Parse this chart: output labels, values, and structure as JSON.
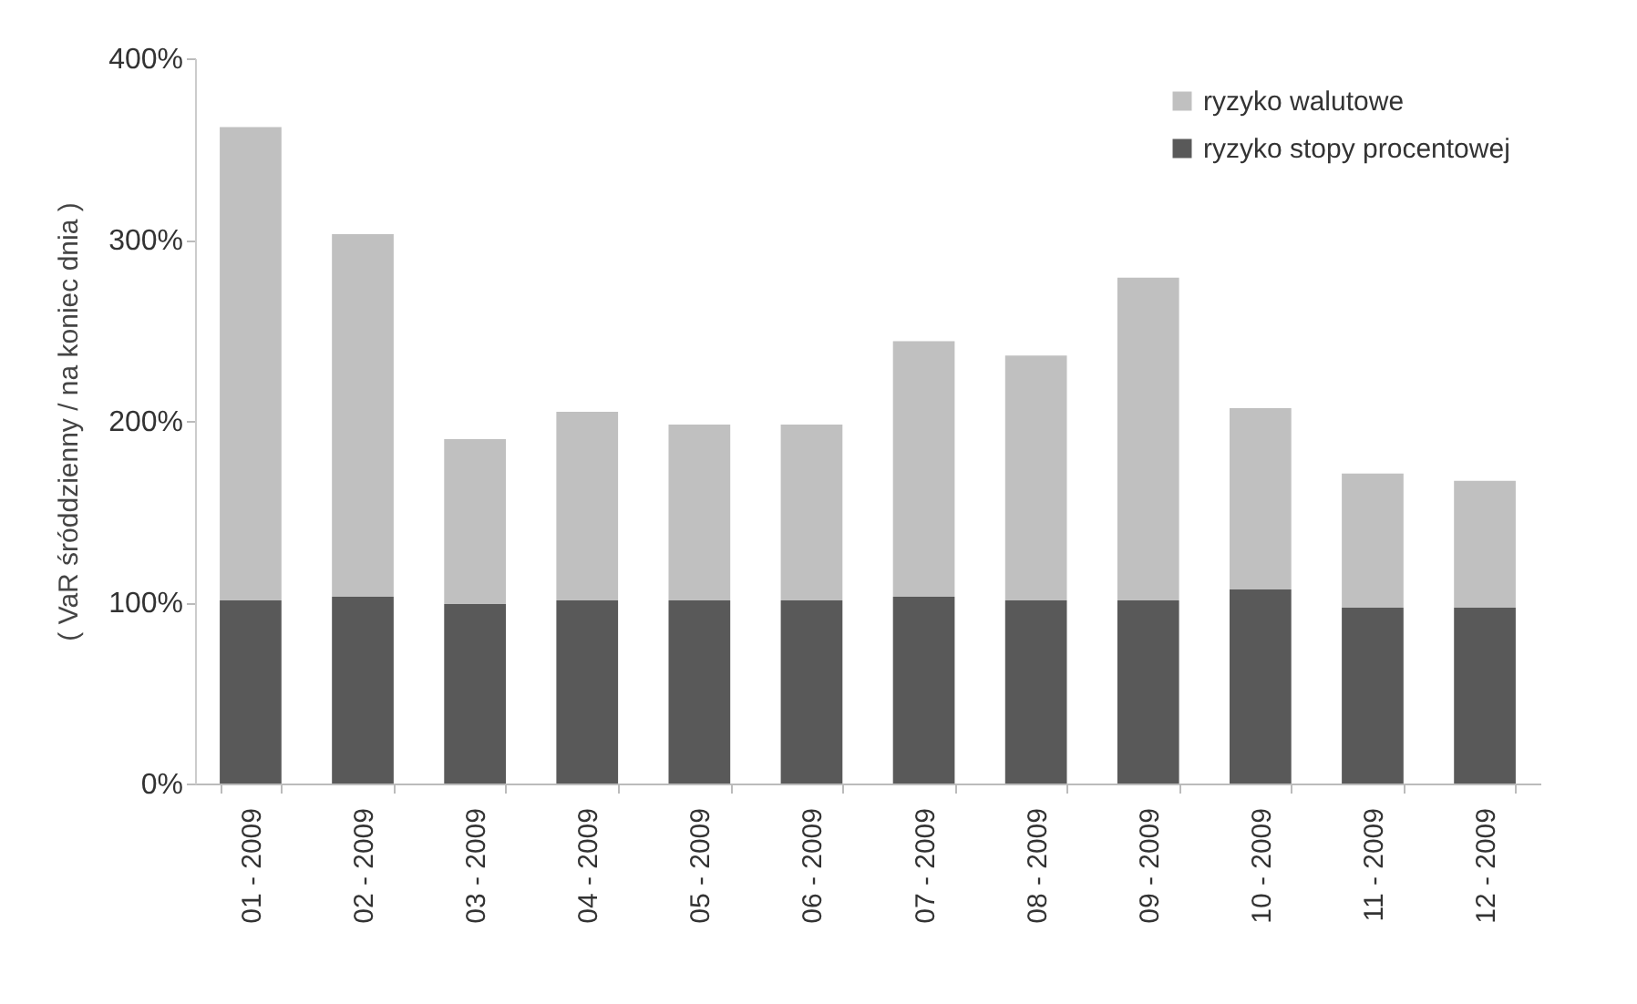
{
  "chart_data": {
    "type": "bar",
    "ylabel": "( VaR śróddzienny / na koniec dnia )",
    "categories": [
      "01 - 2009",
      "02 - 2009",
      "03 - 2009",
      "04 - 2009",
      "05 - 2009",
      "06 - 2009",
      "07 - 2009",
      "08 - 2009",
      "09 - 2009",
      "10 - 2009",
      "11 - 2009",
      "12 - 2009"
    ],
    "series": [
      {
        "name": "ryzyko stopy procentowej",
        "color": "#595959",
        "values": [
          101,
          103,
          99,
          101,
          101,
          101,
          103,
          101,
          101,
          107,
          97,
          97
        ]
      },
      {
        "name": "ryzyko walutowe",
        "color": "#c0c0c0",
        "values": [
          261,
          200,
          91,
          104,
          97,
          97,
          141,
          135,
          178,
          100,
          74,
          70
        ]
      }
    ],
    "stacked": true,
    "ylim": [
      0,
      400
    ],
    "yticks": [
      {
        "value": 0,
        "label": "0%"
      },
      {
        "value": 100,
        "label": "100%"
      },
      {
        "value": 200,
        "label": "200%"
      },
      {
        "value": 300,
        "label": "300%"
      },
      {
        "value": 400,
        "label": "400%"
      }
    ],
    "grid": false,
    "legend": "top right"
  }
}
